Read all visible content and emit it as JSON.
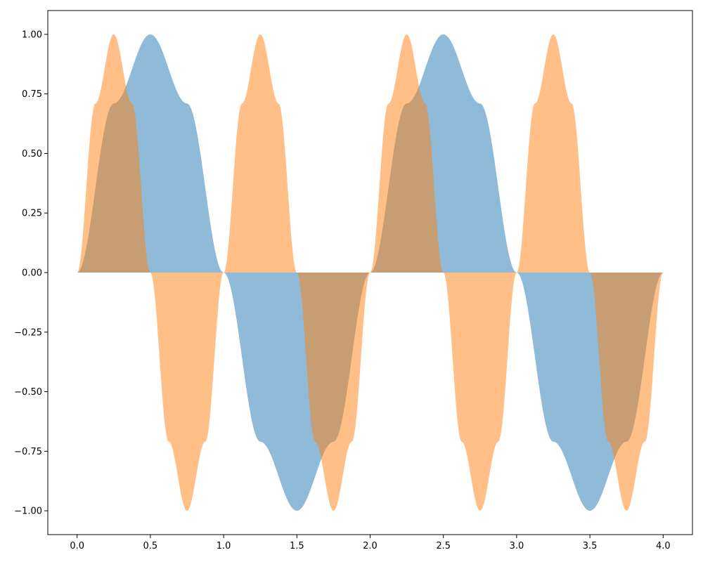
{
  "chart_data": {
    "type": "area",
    "title": "",
    "xlabel": "",
    "ylabel": "",
    "xlim": [
      -0.2,
      4.2
    ],
    "ylim": [
      -1.1,
      1.1
    ],
    "grid": false,
    "x_ticks": [
      0.0,
      0.5,
      1.0,
      1.5,
      2.0,
      2.5,
      3.0,
      3.5,
      4.0
    ],
    "x_tick_labels": [
      "0.0",
      "0.5",
      "1.0",
      "1.5",
      "2.0",
      "2.5",
      "3.0",
      "3.5",
      "4.0"
    ],
    "y_ticks": [
      -1.0,
      -0.75,
      -0.5,
      -0.25,
      0.0,
      0.25,
      0.5,
      0.75,
      1.0
    ],
    "y_tick_labels": [
      "−1.00",
      "−0.75",
      "−0.50",
      "−0.25",
      "0.00",
      "0.25",
      "0.50",
      "0.75",
      "1.00"
    ],
    "series": [
      {
        "color": "#1f77b4",
        "opacity": 0.5,
        "x": [
          0.0,
          0.25,
          0.5,
          0.75,
          1.0,
          1.25,
          1.5,
          1.75,
          2.0,
          2.25,
          2.5,
          2.75,
          3.0,
          3.25,
          3.5,
          3.75,
          4.0
        ],
        "values": [
          0.0,
          0.71,
          1.0,
          0.71,
          0.0,
          -0.71,
          -1.0,
          -0.71,
          0.0,
          0.71,
          1.0,
          0.71,
          0.0,
          -0.71,
          -1.0,
          -0.71,
          0.0
        ]
      },
      {
        "color": "#ff7f0e",
        "opacity": 0.5,
        "x": [
          0.0,
          0.125,
          0.25,
          0.375,
          0.5,
          0.625,
          0.75,
          0.875,
          1.0,
          1.125,
          1.25,
          1.375,
          1.5,
          1.625,
          1.75,
          1.875,
          2.0,
          2.125,
          2.25,
          2.375,
          2.5,
          2.625,
          2.75,
          2.875,
          3.0,
          3.125,
          3.25,
          3.375,
          3.5,
          3.625,
          3.75,
          3.875,
          4.0
        ],
        "values": [
          0.0,
          0.71,
          1.0,
          0.71,
          0.0,
          -0.71,
          -1.0,
          -0.71,
          0.0,
          0.71,
          1.0,
          0.71,
          0.0,
          -0.71,
          -1.0,
          -0.71,
          0.0,
          0.71,
          1.0,
          0.71,
          0.0,
          -0.71,
          -1.0,
          -0.71,
          0.0,
          0.71,
          1.0,
          0.71,
          0.0,
          -0.71,
          -1.0,
          -0.71,
          0.0
        ]
      }
    ]
  }
}
